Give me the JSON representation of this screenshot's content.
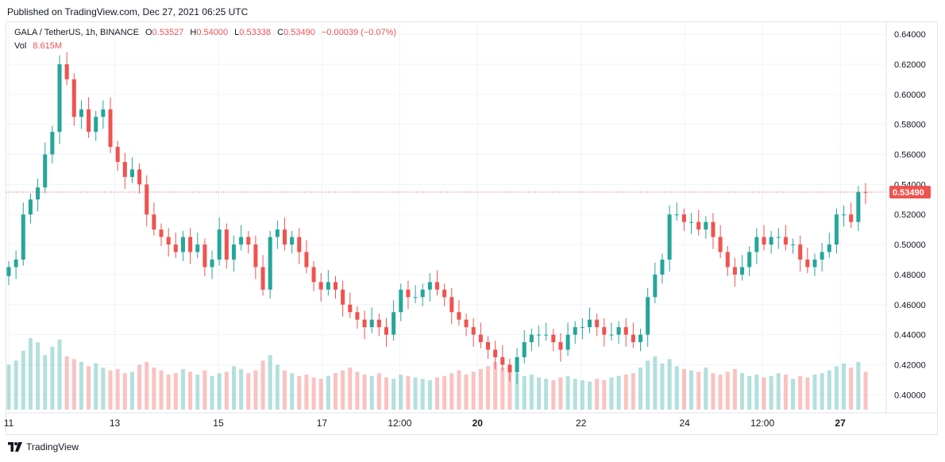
{
  "published": "Published on TradingView.com, Dec 27, 2021 06:25 UTC",
  "legend": {
    "symbol": "GALA / TetherUS, 1h, BINANCE",
    "o_label": "O",
    "o": "0.53527",
    "h_label": "H",
    "h": "0.54000",
    "l_label": "L",
    "l": "0.53338",
    "c_label": "C",
    "c": "0.53490",
    "change": "−0.00039 (−0.07%)",
    "vol_label": "Vol",
    "vol": "8.615M"
  },
  "footer": {
    "brand": "TradingView",
    "logo_icon": "tradingview-logo-icon"
  },
  "colors": {
    "up": "#26a69a",
    "down": "#ef5350",
    "grid": "#f0f3fa",
    "text": "#131722"
  },
  "chart_data": {
    "type": "candlestick",
    "title": "GALA / TetherUS, 1h, BINANCE",
    "ylim": [
      0.388,
      0.648
    ],
    "y_ticks": [
      "0.64000",
      "0.62000",
      "0.60000",
      "0.58000",
      "0.56000",
      "0.54000",
      "0.52000",
      "0.50000",
      "0.48000",
      "0.46000",
      "0.44000",
      "0.42000",
      "0.40000"
    ],
    "x_ticks": [
      {
        "label": "11",
        "bold": false,
        "frac": 0.0
      },
      {
        "label": "13",
        "bold": false,
        "frac": 0.1262
      },
      {
        "label": "15",
        "bold": false,
        "frac": 0.2495
      },
      {
        "label": "17",
        "bold": false,
        "frac": 0.3728
      },
      {
        "label": "12:00",
        "bold": false,
        "frac": 0.4654
      },
      {
        "label": "20",
        "bold": true,
        "frac": 0.5579
      },
      {
        "label": "22",
        "bold": false,
        "frac": 0.6812
      },
      {
        "label": "24",
        "bold": false,
        "frac": 0.8045
      },
      {
        "label": "12:00",
        "bold": false,
        "frac": 0.8971
      },
      {
        "label": "27",
        "bold": true,
        "frac": 0.9897
      }
    ],
    "last_price": "0.53490",
    "last_price_value": 0.5349,
    "closes": [
      0.485,
      0.49,
      0.52,
      0.53,
      0.538,
      0.56,
      0.575,
      0.62,
      0.61,
      0.585,
      0.59,
      0.575,
      0.585,
      0.59,
      0.565,
      0.555,
      0.545,
      0.55,
      0.54,
      0.52,
      0.51,
      0.505,
      0.5,
      0.495,
      0.505,
      0.495,
      0.5,
      0.485,
      0.49,
      0.51,
      0.49,
      0.5,
      0.505,
      0.5,
      0.485,
      0.47,
      0.505,
      0.51,
      0.5,
      0.505,
      0.495,
      0.485,
      0.475,
      0.47,
      0.475,
      0.47,
      0.46,
      0.455,
      0.45,
      0.445,
      0.45,
      0.445,
      0.44,
      0.455,
      0.47,
      0.465,
      0.465,
      0.47,
      0.475,
      0.47,
      0.465,
      0.455,
      0.45,
      0.445,
      0.44,
      0.435,
      0.43,
      0.425,
      0.42,
      0.415,
      0.425,
      0.435,
      0.44,
      0.44,
      0.44,
      0.435,
      0.43,
      0.44,
      0.445,
      0.445,
      0.45,
      0.445,
      0.44,
      0.44,
      0.445,
      0.44,
      0.435,
      0.44,
      0.465,
      0.48,
      0.49,
      0.52,
      0.52,
      0.515,
      0.515,
      0.51,
      0.515,
      0.505,
      0.495,
      0.485,
      0.48,
      0.485,
      0.495,
      0.505,
      0.5,
      0.505,
      0.505,
      0.5,
      0.5,
      0.49,
      0.485,
      0.49,
      0.495,
      0.5,
      0.52,
      0.52,
      0.515,
      0.535,
      0.5349
    ],
    "volumes": [
      3.2,
      3.5,
      4.2,
      5.1,
      4.8,
      3.9,
      4.5,
      5.0,
      3.8,
      3.6,
      3.4,
      3.1,
      3.3,
      3.0,
      2.8,
      2.9,
      2.6,
      2.7,
      3.2,
      3.4,
      3.0,
      2.8,
      2.5,
      2.6,
      2.9,
      2.7,
      2.5,
      2.8,
      2.4,
      2.6,
      2.7,
      3.1,
      2.9,
      2.6,
      2.8,
      3.5,
      3.9,
      3.2,
      2.8,
      2.6,
      2.4,
      2.5,
      2.3,
      2.2,
      2.4,
      2.6,
      2.8,
      3.0,
      2.7,
      2.5,
      2.4,
      2.6,
      2.3,
      2.2,
      2.5,
      2.4,
      2.3,
      2.2,
      2.1,
      2.3,
      2.4,
      2.6,
      2.8,
      2.5,
      2.7,
      2.9,
      3.1,
      3.4,
      3.0,
      2.8,
      2.6,
      2.4,
      2.5,
      2.3,
      2.2,
      2.1,
      2.3,
      2.4,
      2.2,
      2.1,
      2.0,
      2.2,
      2.1,
      2.3,
      2.4,
      2.5,
      2.6,
      3.0,
      3.5,
      3.8,
      3.3,
      3.6,
      3.1,
      2.9,
      2.8,
      2.7,
      3.0,
      2.6,
      2.5,
      2.7,
      2.9,
      2.6,
      2.4,
      2.5,
      2.3,
      2.4,
      2.6,
      2.5,
      2.2,
      2.4,
      2.3,
      2.5,
      2.6,
      2.8,
      3.1,
      3.3,
      3.0,
      3.4,
      2.7
    ]
  }
}
